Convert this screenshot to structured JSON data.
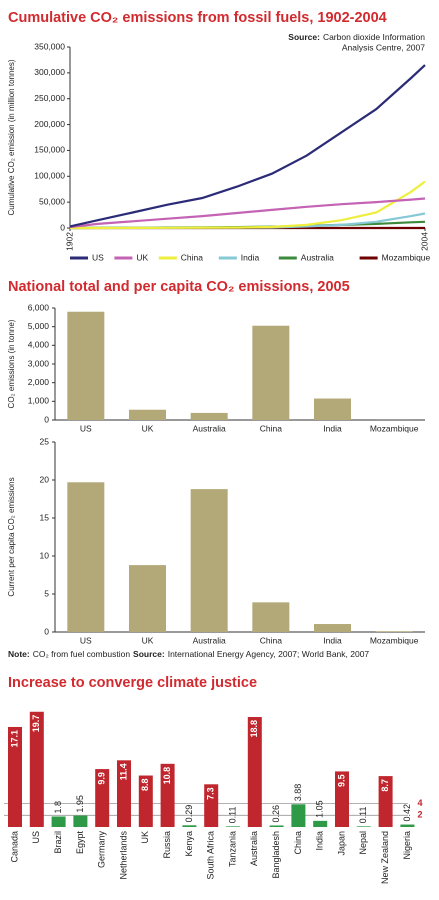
{
  "chart_data": [
    {
      "type": "line",
      "title": "Cumulative CO₂ emissions from fossil fuels, 1902-2004",
      "source_label": "Source:",
      "source": [
        "Carbon dioxide Information",
        "Analysis Centre, 2007"
      ],
      "y_label": "Cumulative CO₂ emission (in million tonnes)",
      "x": [
        1902,
        1910,
        1920,
        1930,
        1940,
        1950,
        1960,
        1970,
        1980,
        1990,
        2000,
        2004
      ],
      "xlim": [
        1902,
        2004
      ],
      "xticks": [
        1902,
        2004
      ],
      "ylim": [
        0,
        350000
      ],
      "yticks": [
        0,
        {
          "value": 50000,
          "label": "50,000"
        },
        {
          "value": 100000,
          "label": "100,000"
        },
        {
          "value": 150000,
          "label": "150,000"
        },
        {
          "value": 200000,
          "label": "200,000"
        },
        {
          "value": 250000,
          "label": "250,000"
        },
        {
          "value": 300000,
          "label": "300,000"
        },
        {
          "value": 350000,
          "label": "350,000"
        }
      ],
      "series": [
        {
          "name": "US",
          "color": "#2b2b78",
          "values": [
            3000,
            15000,
            30000,
            45000,
            58000,
            80000,
            105000,
            140000,
            185000,
            230000,
            290000,
            315000
          ]
        },
        {
          "name": "UK",
          "color": "#c462b4",
          "values": [
            2000,
            8000,
            13000,
            18000,
            23000,
            29000,
            35000,
            41000,
            46000,
            50000,
            55000,
            57000
          ]
        },
        {
          "name": "China",
          "color": "#eeee3c",
          "values": [
            0,
            0,
            200,
            400,
            700,
            1000,
            2000,
            6000,
            15000,
            30000,
            70000,
            90000
          ]
        },
        {
          "name": "India",
          "color": "#86c9d6",
          "values": [
            0,
            100,
            200,
            400,
            600,
            800,
            1000,
            3000,
            6000,
            12000,
            23000,
            28000
          ]
        },
        {
          "name": "Australia",
          "color": "#3c8a3c",
          "values": [
            0,
            200,
            500,
            900,
            1300,
            1800,
            2600,
            4000,
            6000,
            8000,
            11000,
            12000
          ]
        },
        {
          "name": "Mozambique",
          "color": "#6e0000",
          "values": [
            0,
            0,
            0,
            0,
            0,
            0,
            10,
            20,
            40,
            60,
            80,
            90
          ]
        }
      ]
    },
    {
      "type": "bar",
      "title": "National total and per capita CO₂ emissions, 2005",
      "y_label": "CO₂ emissions (in tonne)",
      "categories": [
        "US",
        "UK",
        "Australia",
        "China",
        "India",
        "Mozambique"
      ],
      "values": [
        5800,
        550,
        380,
        5050,
        1150,
        2
      ],
      "color": "#b3a878",
      "ylim": [
        0,
        6000
      ],
      "yticks": [
        0,
        {
          "value": 1000,
          "label": "1,000"
        },
        {
          "value": 2000,
          "label": "2,000"
        },
        {
          "value": 3000,
          "label": "3,000"
        },
        {
          "value": 4000,
          "label": "4,000"
        },
        {
          "value": 5000,
          "label": "5,000"
        },
        {
          "value": 6000,
          "label": "6,000"
        }
      ]
    },
    {
      "type": "bar",
      "y_label": "Current per capita CO₂ emissions",
      "categories": [
        "US",
        "UK",
        "Australia",
        "China",
        "India",
        "Mozambique"
      ],
      "values": [
        19.7,
        8.8,
        18.8,
        3.9,
        1.05,
        0.1
      ],
      "color": "#b3a878",
      "ylim": [
        0,
        25
      ],
      "yticks": [
        0,
        5,
        10,
        15,
        20,
        25
      ],
      "note_label": "Note:",
      "note": "CO₂ from fuel combustion",
      "source_label": "Source:",
      "source": "International Energy Agency, 2007; World Bank, 2007"
    },
    {
      "type": "convergence",
      "title": "Increase to converge climate justice",
      "categories": [
        "Canada",
        "US",
        "Brazil",
        "Egypt",
        "Germany",
        "Netherlands",
        "UK",
        "Russia",
        "Kenya",
        "South Africa",
        "Tanzania",
        "Australia",
        "Bangladesh",
        "China",
        "India",
        "Japan",
        "Nepal",
        "New Zealand",
        "Nigeria"
      ],
      "values": [
        17.1,
        19.7,
        1.8,
        1.95,
        9.9,
        11.4,
        8.8,
        10.8,
        0.29,
        7.3,
        0.11,
        18.8,
        0.26,
        3.88,
        1.05,
        9.5,
        0.11,
        8.7,
        0.42
      ],
      "colors": [
        "#c0262d",
        "#c0262d",
        "#2e9a48",
        "#2e9a48",
        "#c0262d",
        "#c0262d",
        "#c0262d",
        "#c0262d",
        "#2e9a48",
        "#c0262d",
        "#2e9a48",
        "#c0262d",
        "#2e9a48",
        "#2e9a48",
        "#2e9a48",
        "#c0262d",
        "#2e9a48",
        "#c0262d",
        "#2e9a48"
      ],
      "reference_lines": [
        4,
        2
      ]
    }
  ]
}
